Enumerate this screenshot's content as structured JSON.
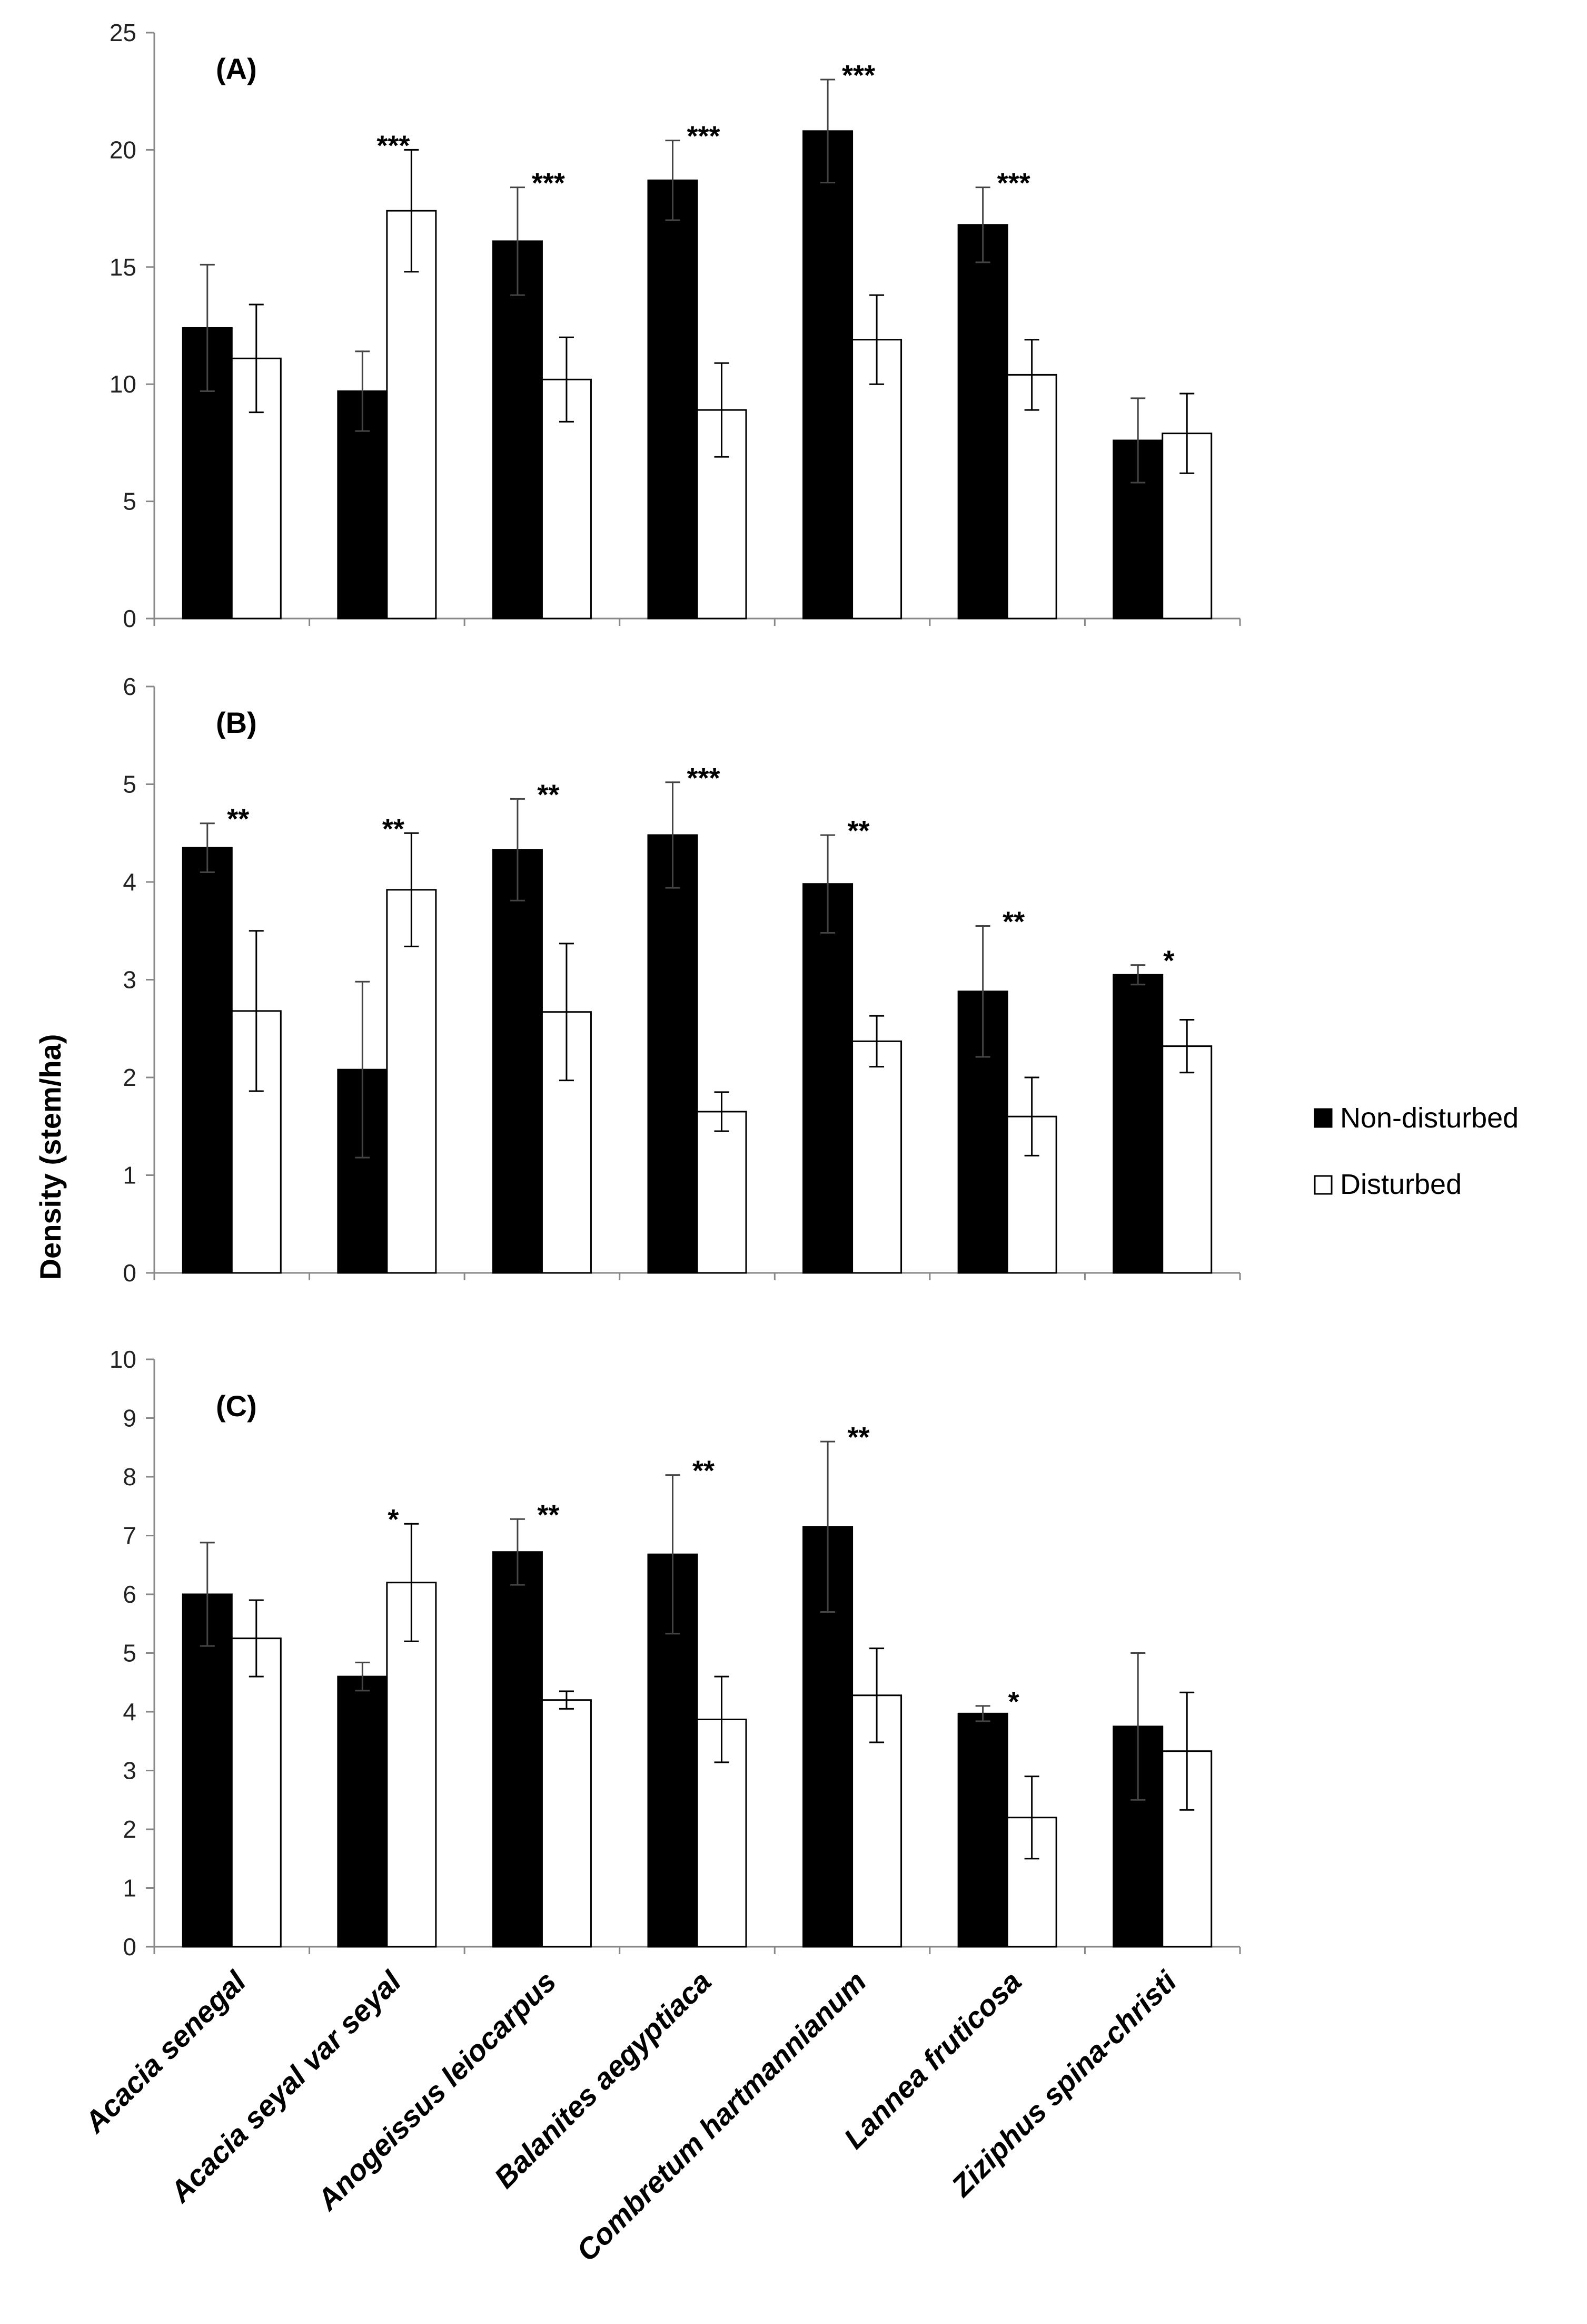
{
  "chart_data": {
    "type": "bar",
    "ylabel": "Density (stem/ha)",
    "categories": [
      "Acacia senegal",
      "Acacia seyal var seyal",
      "Anogeissus leiocarpus",
      "Balanites aegyptiaca",
      "Combretum hartmannianum",
      "Lannea fruticosa",
      "Ziziphus spina-christi"
    ],
    "legend": {
      "position": "right",
      "entries": [
        "Non-disturbed",
        "Disturbed"
      ]
    },
    "colors": {
      "non_disturbed": "#000000",
      "disturbed": "#ffffff",
      "axis": "#888888"
    },
    "panels": [
      {
        "label": "(A)",
        "ylim": [
          0,
          25
        ],
        "yticks": [
          "0",
          "5",
          "10",
          "15",
          "20",
          "25"
        ],
        "yticks_values": [
          0,
          5,
          10,
          15,
          20,
          25
        ],
        "series": [
          {
            "name": "Non-disturbed",
            "values": [
              12.4,
              9.7,
              16.1,
              18.7,
              20.8,
              16.8,
              7.6
            ],
            "errors": [
              2.7,
              1.7,
              2.3,
              1.7,
              2.2,
              1.6,
              1.8
            ]
          },
          {
            "name": "Disturbed",
            "values": [
              11.1,
              17.4,
              10.2,
              8.9,
              11.9,
              10.4,
              7.9
            ],
            "errors": [
              2.3,
              2.6,
              1.8,
              2.0,
              1.9,
              1.5,
              1.7
            ]
          }
        ],
        "significance": [
          "",
          "***",
          "***",
          "***",
          "***",
          "***",
          ""
        ]
      },
      {
        "label": "(B)",
        "ylim": [
          0,
          6
        ],
        "yticks": [
          "0",
          "1",
          "2",
          "3",
          "4",
          "5",
          "6"
        ],
        "yticks_values": [
          0,
          1,
          2,
          3,
          4,
          5,
          6
        ],
        "series": [
          {
            "name": "Non-disturbed",
            "values": [
              4.35,
              2.08,
              4.33,
              4.48,
              3.98,
              2.88,
              3.05
            ],
            "errors": [
              0.25,
              0.9,
              0.52,
              0.54,
              0.5,
              0.67,
              0.1
            ]
          },
          {
            "name": "Disturbed",
            "values": [
              2.68,
              3.92,
              2.67,
              1.65,
              2.37,
              1.6,
              2.32
            ],
            "errors": [
              0.82,
              0.58,
              0.7,
              0.2,
              0.26,
              0.4,
              0.27
            ]
          }
        ],
        "significance": [
          "**",
          "**",
          "**",
          "***",
          "**",
          "**",
          "*"
        ]
      },
      {
        "label": "(C)",
        "ylim": [
          0,
          10
        ],
        "yticks": [
          "0",
          "1",
          "2",
          "3",
          "4",
          "5",
          "6",
          "7",
          "8",
          "9",
          "10"
        ],
        "yticks_values": [
          0,
          1,
          2,
          3,
          4,
          5,
          6,
          7,
          8,
          9,
          10
        ],
        "series": [
          {
            "name": "Non-disturbed",
            "values": [
              6.0,
              4.6,
              6.72,
              6.68,
              7.15,
              3.97,
              3.75
            ],
            "errors": [
              0.88,
              0.24,
              0.56,
              1.35,
              1.45,
              0.13,
              1.25
            ]
          },
          {
            "name": "Disturbed",
            "values": [
              5.25,
              6.2,
              4.2,
              3.87,
              4.28,
              2.2,
              3.33
            ],
            "errors": [
              0.65,
              1.0,
              0.15,
              0.73,
              0.8,
              0.7,
              1.0
            ]
          }
        ],
        "significance": [
          "",
          "*",
          "**",
          "**",
          "**",
          "*",
          ""
        ]
      }
    ]
  }
}
